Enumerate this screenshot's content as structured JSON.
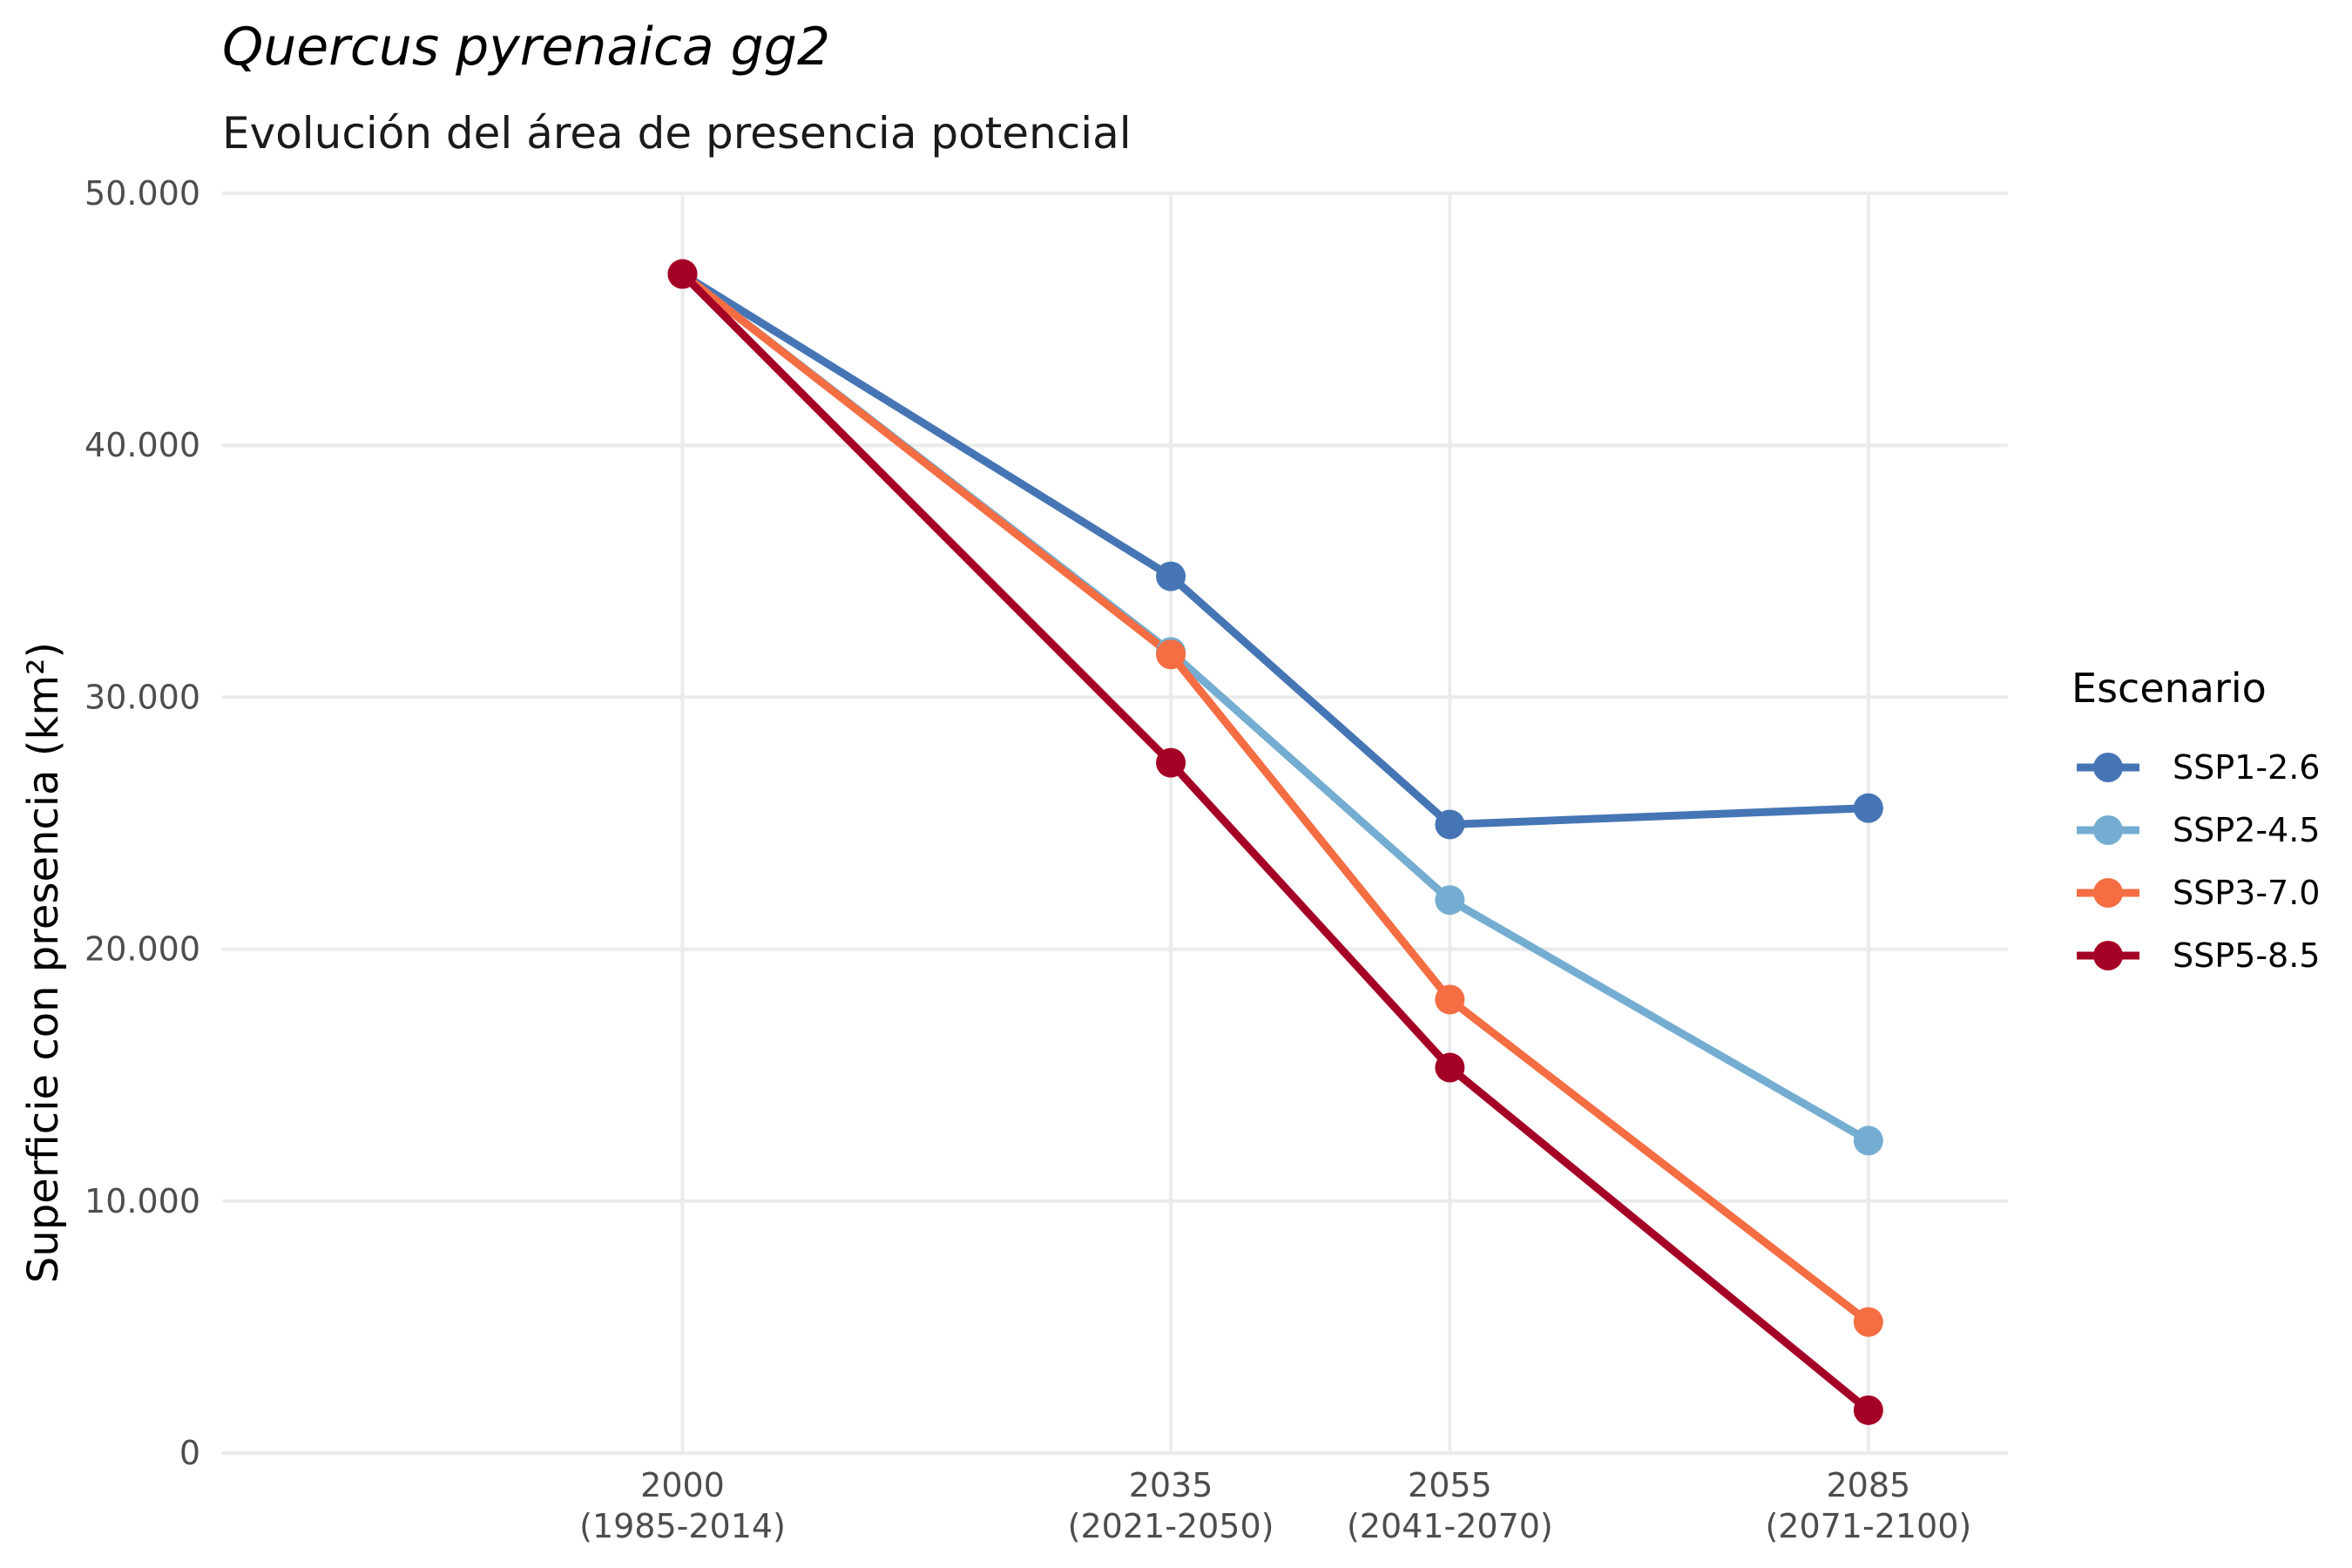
{
  "chart_data": {
    "type": "line",
    "title": "Quercus pyrenaica gg2",
    "subtitle": "Evolución del área de presencia potencial",
    "ylabel": "Superficie con presencia (km²)",
    "xlabel": "",
    "x": [
      2000,
      2035,
      2055,
      2085
    ],
    "x_tick_labels": [
      {
        "year": "2000",
        "period": "(1985-2014)"
      },
      {
        "year": "2035",
        "period": "(2021-2050)"
      },
      {
        "year": "2055",
        "period": "(2041-2070)"
      },
      {
        "year": "2085",
        "period": "(2071-2100)"
      }
    ],
    "xlim": [
      1967,
      2095
    ],
    "ylim": [
      0,
      50000
    ],
    "y_ticks": [
      0,
      10000,
      20000,
      30000,
      40000,
      50000
    ],
    "y_tick_labels": [
      "0",
      "10.000",
      "20.000",
      "30.000",
      "40.000",
      "50.000"
    ],
    "grid": true,
    "legend": {
      "title": "Escenario",
      "position": "right"
    },
    "series": [
      {
        "name": "SSP1-2.6",
        "color": "#4575b4",
        "values": [
          46800,
          34800,
          24950,
          25600
        ]
      },
      {
        "name": "SSP2-4.5",
        "color": "#74add1",
        "values": [
          46800,
          31800,
          21950,
          12400
        ]
      },
      {
        "name": "SSP3-7.0",
        "color": "#f46d43",
        "values": [
          46800,
          31700,
          18000,
          5200
        ]
      },
      {
        "name": "SSP5-8.5",
        "color": "#a50026",
        "values": [
          46800,
          27400,
          15300,
          1700
        ]
      }
    ]
  }
}
